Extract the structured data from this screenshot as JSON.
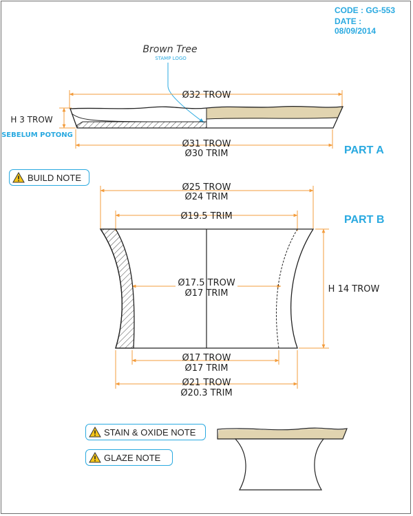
{
  "header": {
    "code": "CODE : GG-553",
    "date": "DATE : 08/09/2014"
  },
  "logo": {
    "name": "Brown Tree",
    "caption": "STAMP LOGO"
  },
  "part_a": {
    "label": "PART A",
    "top_diameter": "Ø32 TROW",
    "height": "H 3 TROW",
    "height_note": "SEBELUM POTONG",
    "bottom_diameter_trow": "Ø31 TROW",
    "bottom_diameter_trim": "Ø30 TRIM"
  },
  "part_b": {
    "label": "PART B",
    "top_outer_trow": "Ø25 TROW",
    "top_outer_trim": "Ø24 TRIM",
    "top_inner_trim": "Ø19.5 TRIM",
    "middle_trow": "Ø17.5 TROW",
    "middle_trim": "Ø17 TRIM",
    "height": "H 14 TROW",
    "foot_inner_trow": "Ø17 TROW",
    "foot_inner_trim": "Ø17 TRIM",
    "foot_outer_trow": "Ø21 TROW",
    "foot_outer_trim": "Ø20.3 TRIM"
  },
  "notes": {
    "build": "BUILD NOTE",
    "stain_oxide": "STAIN & OXIDE NOTE",
    "glaze": "GLAZE NOTE"
  },
  "colors": {
    "accent": "#29a9e0",
    "dimension": "#f39c3c",
    "glaze": "#e1d4b0",
    "outline": "#222222",
    "warning": "#f5c518"
  }
}
